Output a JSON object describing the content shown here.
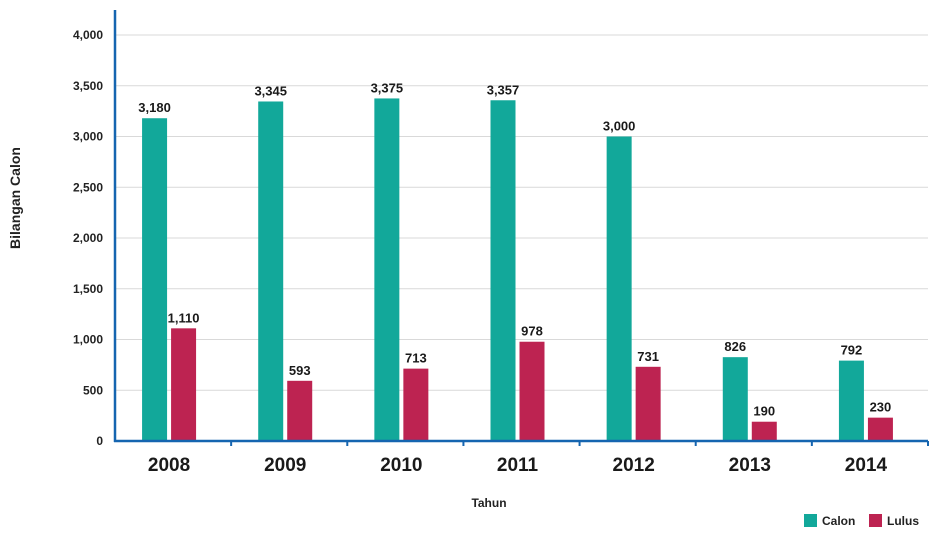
{
  "chart_data": {
    "type": "bar",
    "categories": [
      "2008",
      "2009",
      "2010",
      "2011",
      "2012",
      "2013",
      "2014"
    ],
    "series": [
      {
        "name": "Calon",
        "values": [
          3180,
          3345,
          3375,
          3357,
          3000,
          826,
          792
        ],
        "color": "#12a89a"
      },
      {
        "name": "Lulus",
        "values": [
          1110,
          593,
          713,
          978,
          731,
          190,
          230
        ],
        "color": "#bd2351"
      }
    ],
    "data_labels": [
      [
        "3,180",
        "3,345",
        "3,375",
        "3,357",
        "3,000",
        "826",
        "792"
      ],
      [
        "1,110",
        "593",
        "713",
        "978",
        "731",
        "190",
        "230"
      ]
    ],
    "xlabel": "Tahun",
    "ylabel": "Bilangan Calon",
    "ylim": [
      0,
      4000
    ],
    "yticks": [
      0,
      500,
      1000,
      1500,
      2000,
      2500,
      3000,
      3500,
      4000
    ],
    "ytick_labels": [
      "0",
      "500",
      "1,000",
      "1,500",
      "2,000",
      "2,500",
      "3,000",
      "3,500",
      "4,000"
    ],
    "grid": true,
    "legend_position": "bottom-right",
    "axis_color": "#1565b0",
    "grid_color": "#d9d9d9"
  }
}
